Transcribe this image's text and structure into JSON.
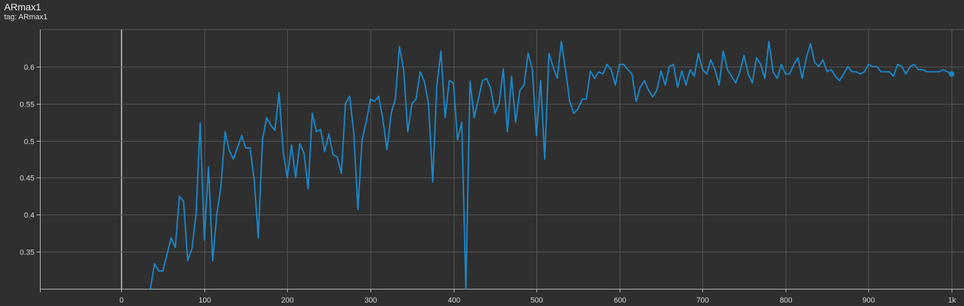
{
  "header": {
    "title": "ARmax1",
    "tag_label": "tag: ARmax1"
  },
  "chart_data": {
    "type": "line",
    "title": "ARmax1",
    "xlabel": "",
    "ylabel": "",
    "xlim": [
      -98,
      1000
    ],
    "ylim": [
      0.3,
      0.65
    ],
    "grid": true,
    "x_ticks": [
      0,
      100,
      200,
      300,
      400,
      500,
      600,
      700,
      800,
      900,
      1000
    ],
    "x_tick_labels": [
      "0",
      "100",
      "200",
      "300",
      "400",
      "500",
      "600",
      "700",
      "800",
      "900",
      "1k"
    ],
    "y_ticks": [
      0.35,
      0.4,
      0.45,
      0.5,
      0.55,
      0.6
    ],
    "y_tick_labels": [
      "0.35",
      "0.4",
      "0.45",
      "0.5",
      "0.55",
      "0.6"
    ],
    "colors": {
      "line": "#1b87c9",
      "background": "#2f2f2f",
      "grid": "#555555"
    },
    "series": [
      {
        "x": [
          35,
          40,
          45,
          50,
          55,
          60,
          65,
          70,
          75,
          80,
          85,
          90,
          95,
          100,
          105,
          110,
          115,
          120,
          125,
          130,
          135,
          140,
          145,
          150,
          155,
          160,
          165,
          170,
          175,
          180,
          185,
          190,
          195,
          200,
          205,
          210,
          215,
          220,
          225,
          230,
          235,
          240,
          245,
          250,
          255,
          260,
          265,
          270,
          275,
          280,
          285,
          290,
          295,
          300,
          305,
          310,
          315,
          320,
          325,
          330,
          335,
          340,
          345,
          350,
          355,
          360,
          365,
          370,
          375,
          380,
          385,
          390,
          395,
          400,
          405,
          410,
          415,
          420,
          425,
          430,
          435,
          440,
          445,
          450,
          455,
          460,
          465,
          470,
          475,
          480,
          485,
          490,
          495,
          500,
          505,
          510,
          515,
          520,
          525,
          530,
          535,
          540,
          545,
          550,
          555,
          560,
          565,
          570,
          575,
          580,
          585,
          590,
          595,
          600,
          605,
          610,
          615,
          620,
          625,
          630,
          635,
          640,
          645,
          650,
          655,
          660,
          665,
          670,
          675,
          680,
          685,
          690,
          695,
          700,
          705,
          710,
          715,
          720,
          725,
          730,
          735,
          740,
          745,
          750,
          755,
          760,
          765,
          770,
          775,
          780,
          785,
          790,
          795,
          800,
          805,
          810,
          815,
          820,
          825,
          830,
          835,
          840,
          845,
          850,
          855,
          860,
          865,
          870,
          875,
          880,
          885,
          890,
          895,
          900,
          905,
          910,
          915,
          920,
          925,
          930,
          935,
          940,
          945,
          950,
          955,
          960,
          965,
          970,
          975,
          980,
          985,
          990,
          995,
          1000
        ],
        "y": [
          0.3,
          0.334,
          0.324,
          0.324,
          0.346,
          0.369,
          0.356,
          0.425,
          0.418,
          0.338,
          0.354,
          0.4,
          0.524,
          0.366,
          0.465,
          0.338,
          0.4,
          0.439,
          0.512,
          0.487,
          0.475,
          0.491,
          0.507,
          0.49,
          0.49,
          0.448,
          0.369,
          0.501,
          0.531,
          0.521,
          0.514,
          0.565,
          0.485,
          0.45,
          0.494,
          0.45,
          0.496,
          0.483,
          0.435,
          0.537,
          0.512,
          0.515,
          0.485,
          0.509,
          0.481,
          0.478,
          0.456,
          0.55,
          0.56,
          0.51,
          0.407,
          0.502,
          0.525,
          0.556,
          0.553,
          0.56,
          0.529,
          0.488,
          0.537,
          0.556,
          0.627,
          0.596,
          0.512,
          0.55,
          0.556,
          0.593,
          0.58,
          0.55,
          0.444,
          0.574,
          0.621,
          0.531,
          0.581,
          0.578,
          0.501,
          0.525,
          0.3,
          0.58,
          0.531,
          0.556,
          0.581,
          0.584,
          0.57,
          0.537,
          0.55,
          0.597,
          0.512,
          0.587,
          0.525,
          0.568,
          0.575,
          0.618,
          0.596,
          0.507,
          0.581,
          0.475,
          0.618,
          0.6,
          0.584,
          0.634,
          0.596,
          0.553,
          0.537,
          0.543,
          0.556,
          0.556,
          0.594,
          0.584,
          0.593,
          0.59,
          0.603,
          0.596,
          0.575,
          0.603,
          0.603,
          0.596,
          0.59,
          0.553,
          0.572,
          0.581,
          0.568,
          0.559,
          0.568,
          0.594,
          0.575,
          0.6,
          0.603,
          0.572,
          0.594,
          0.575,
          0.596,
          0.587,
          0.618,
          0.596,
          0.59,
          0.609,
          0.596,
          0.575,
          0.621,
          0.596,
          0.587,
          0.578,
          0.593,
          0.615,
          0.59,
          0.578,
          0.612,
          0.603,
          0.584,
          0.634,
          0.593,
          0.584,
          0.603,
          0.59,
          0.59,
          0.603,
          0.612,
          0.584,
          0.612,
          0.631,
          0.606,
          0.6,
          0.609,
          0.593,
          0.596,
          0.587,
          0.581,
          0.59,
          0.6,
          0.593,
          0.593,
          0.59,
          0.593,
          0.603,
          0.6,
          0.6,
          0.593,
          0.593,
          0.593,
          0.587,
          0.603,
          0.6,
          0.59,
          0.6,
          0.603,
          0.596,
          0.596,
          0.593,
          0.593,
          0.593,
          0.593,
          0.596,
          0.593,
          0.59
        ]
      }
    ]
  }
}
